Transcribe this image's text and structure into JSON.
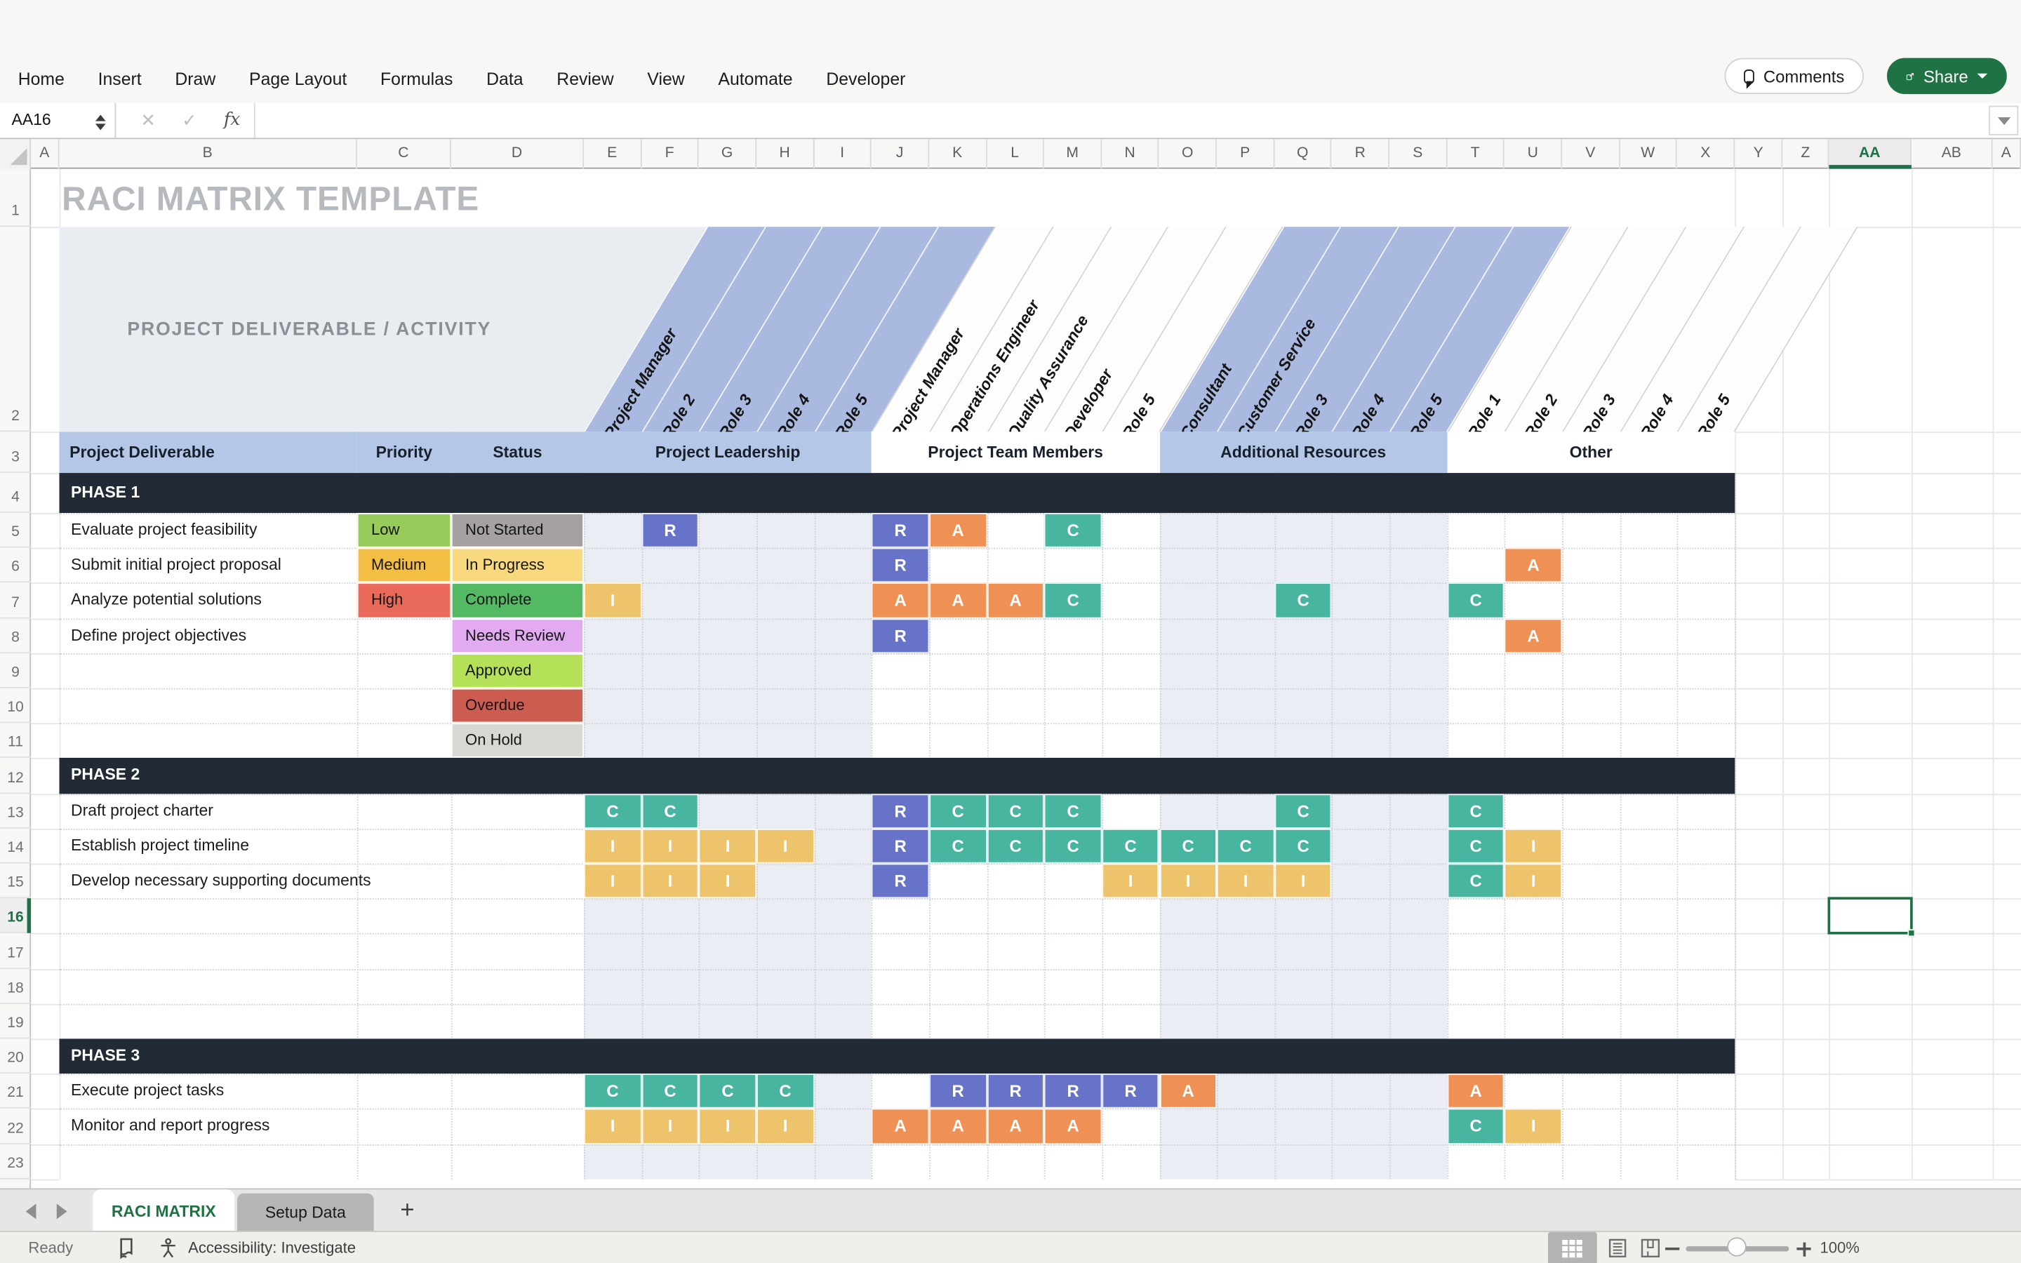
{
  "app": {
    "menu_items": [
      "Home",
      "Insert",
      "Draw",
      "Page Layout",
      "Formulas",
      "Data",
      "Review",
      "View",
      "Automate",
      "Developer"
    ],
    "comments_label": "Comments",
    "share_label": "Share",
    "name_box": "AA16",
    "formula_value": "",
    "formula_buttons": {
      "cancel": "✕",
      "enter": "✓",
      "fx": "fx"
    }
  },
  "grid": {
    "column_letters": [
      "A",
      "B",
      "C",
      "D",
      "E",
      "F",
      "G",
      "H",
      "I",
      "J",
      "K",
      "L",
      "M",
      "N",
      "O",
      "P",
      "Q",
      "R",
      "S",
      "T",
      "U",
      "V",
      "W",
      "X",
      "Y",
      "Z",
      "AA",
      "AB",
      "A"
    ],
    "row_numbers": [
      1,
      2,
      3,
      4,
      5,
      6,
      7,
      8,
      9,
      10,
      11,
      12,
      13,
      14,
      15,
      16,
      17,
      18,
      19,
      20,
      21,
      22,
      23
    ],
    "selected_cell": "AA16",
    "selected_column": "AA",
    "selected_row": 16
  },
  "sheet": {
    "title": "RACI MATRIX TEMPLATE",
    "band_heading": "PROJECT DELIVERABLE / ACTIVITY",
    "columns": {
      "deliverable": "Project Deliverable",
      "priority": "Priority",
      "status": "Status"
    },
    "groups": [
      {
        "label": "Project Leadership",
        "style": "blue",
        "roles": [
          "Project Manager",
          "Role 2",
          "Role 3",
          "Role 4",
          "Role 5"
        ]
      },
      {
        "label": "Project Team Members",
        "style": "white",
        "roles": [
          "Project Manager",
          "Operations Engineer",
          "Quality Assurance",
          "Developer",
          "Role 5"
        ]
      },
      {
        "label": "Additional Resources",
        "style": "blue",
        "roles": [
          "Consultant",
          "Customer Service",
          "Role 3",
          "Role 4",
          "Role 5"
        ]
      },
      {
        "label": "Other",
        "style": "white",
        "roles": [
          "Role 1",
          "Role 2",
          "Role 3",
          "Role 4",
          "Role 5"
        ]
      }
    ],
    "phases": [
      {
        "label": "PHASE 1",
        "tasks": [
          {
            "name": "Evaluate project feasibility",
            "priority": "Low",
            "status": "Not Started",
            "badges": {
              "F": "R",
              "J": "R",
              "K": "A",
              "M": "C"
            }
          },
          {
            "name": "Submit initial project proposal",
            "priority": "Medium",
            "status": "In Progress",
            "badges": {
              "J": "R",
              "U": "A"
            }
          },
          {
            "name": "Analyze potential solutions",
            "priority": "High",
            "status": "Complete",
            "badges": {
              "E": "I",
              "J": "A",
              "K": "A",
              "L": "A",
              "M": "C",
              "Q": "C",
              "T": "C"
            }
          },
          {
            "name": "Define project objectives",
            "priority": "",
            "status": "Needs Review",
            "badges": {
              "J": "R",
              "U": "A"
            }
          },
          {
            "name": "",
            "priority": "",
            "status": "Approved",
            "badges": {}
          },
          {
            "name": "",
            "priority": "",
            "status": "Overdue",
            "badges": {}
          },
          {
            "name": "",
            "priority": "",
            "status": "On Hold",
            "badges": {}
          }
        ]
      },
      {
        "label": "PHASE 2",
        "tasks": [
          {
            "name": "Draft project charter",
            "priority": "",
            "status": "",
            "badges": {
              "E": "C",
              "F": "C",
              "J": "R",
              "K": "C",
              "L": "C",
              "M": "C",
              "Q": "C",
              "T": "C"
            }
          },
          {
            "name": "Establish project timeline",
            "priority": "",
            "status": "",
            "badges": {
              "E": "I",
              "F": "I",
              "G": "I",
              "H": "I",
              "J": "R",
              "K": "C",
              "L": "C",
              "M": "C",
              "N": "C",
              "O": "C",
              "P": "C",
              "Q": "C",
              "T": "C",
              "U": "I"
            }
          },
          {
            "name": "Develop necessary supporting documents",
            "priority": "",
            "status": "",
            "badges": {
              "E": "I",
              "F": "I",
              "G": "I",
              "J": "R",
              "N": "I",
              "O": "I",
              "P": "I",
              "Q": "I",
              "T": "C",
              "U": "I"
            }
          },
          {
            "name": "",
            "priority": "",
            "status": "",
            "badges": {}
          },
          {
            "name": "",
            "priority": "",
            "status": "",
            "badges": {}
          },
          {
            "name": "",
            "priority": "",
            "status": "",
            "badges": {}
          },
          {
            "name": "",
            "priority": "",
            "status": "",
            "badges": {}
          }
        ]
      },
      {
        "label": "PHASE 3",
        "tasks": [
          {
            "name": "Execute project tasks",
            "priority": "",
            "status": "",
            "badges": {
              "E": "C",
              "F": "C",
              "G": "C",
              "H": "C",
              "K": "R",
              "L": "R",
              "M": "R",
              "N": "R",
              "O": "A",
              "T": "A"
            }
          },
          {
            "name": "Monitor and report progress",
            "priority": "",
            "status": "",
            "badges": {
              "E": "I",
              "F": "I",
              "G": "I",
              "H": "I",
              "J": "A",
              "K": "A",
              "L": "A",
              "M": "A",
              "T": "C",
              "U": "I"
            }
          },
          {
            "name": "",
            "priority": "",
            "status": "",
            "badges": {}
          }
        ]
      }
    ],
    "colors": {
      "badge": {
        "R": "#6673c9",
        "A": "#ef9155",
        "C": "#47b5a0",
        "I": "#edc36c"
      },
      "priority": {
        "Low": "#97cb5a",
        "Medium": "#f2bf44",
        "High": "#e96a5b"
      },
      "status": {
        "Not Started": "#a5a1a1",
        "In Progress": "#f8d97e",
        "Complete": "#54b963",
        "Needs Review": "#e2aaf0",
        "Approved": "#b4e158",
        "Overdue": "#cd5c50",
        "On Hold": "#d7d7d3"
      },
      "phase_band": "#222b35",
      "header_blue": "#b4c7e7",
      "stripe": "#eaedf3",
      "role_blue": "#aab9df"
    }
  },
  "tabs": {
    "items": [
      {
        "label": "RACI MATRIX",
        "active": true
      },
      {
        "label": "Setup Data",
        "active": false
      }
    ],
    "add_label": "+"
  },
  "status_bar": {
    "ready": "Ready",
    "accessibility": "Accessibility: Investigate",
    "zoom": "100%"
  }
}
